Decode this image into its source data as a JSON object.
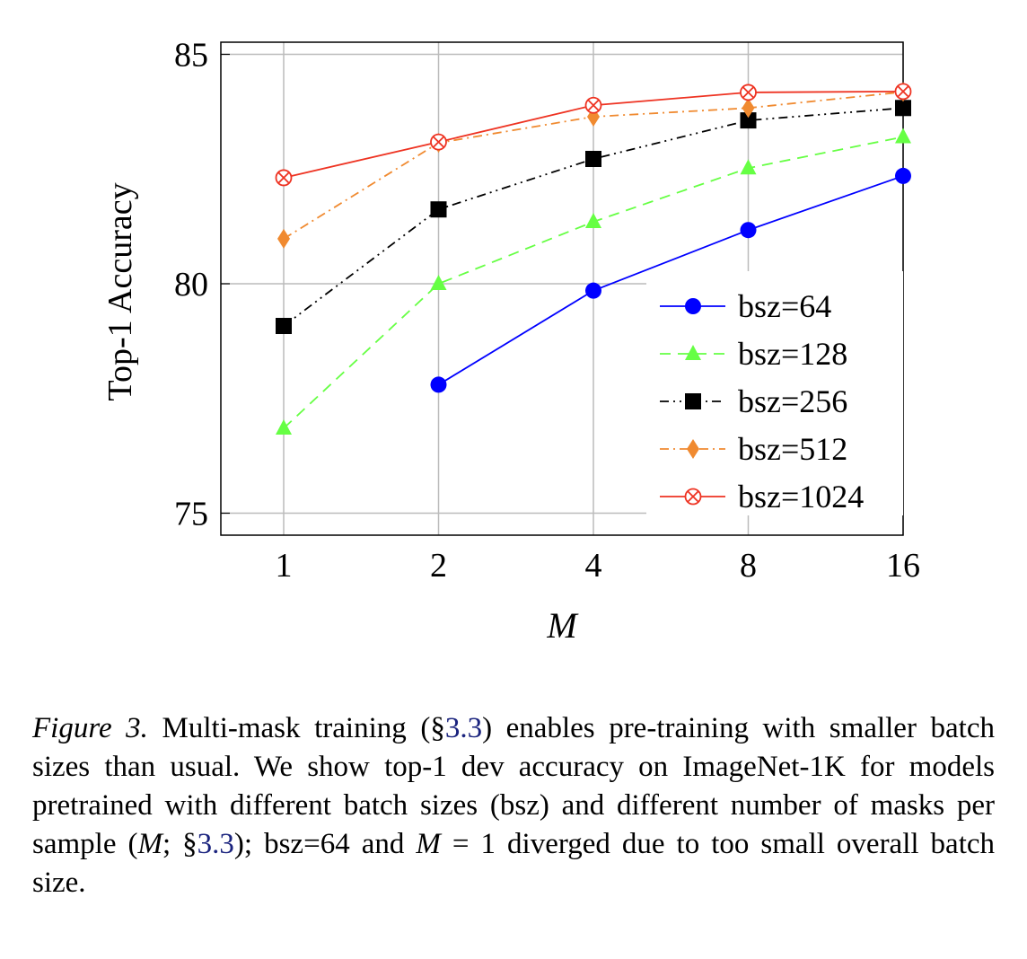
{
  "chart_data": {
    "type": "line",
    "xlabel": "M",
    "ylabel": "Top-1 Accuracy",
    "x": [
      1,
      2,
      4,
      8,
      16
    ],
    "x_tick_labels": [
      "1",
      "2",
      "4",
      "8",
      "16"
    ],
    "x_scale": "log2",
    "ylim": [
      74.5,
      85.2
    ],
    "y_ticks": [
      75,
      80,
      85
    ],
    "grid": true,
    "legend_position": "bottom-right",
    "series": [
      {
        "name": "bsz=64",
        "color": "#0000ff",
        "marker": "circle",
        "dash": "solid",
        "values": [
          null,
          77.8,
          79.85,
          81.17,
          82.35
        ]
      },
      {
        "name": "bsz=128",
        "color": "#66ff44",
        "marker": "triangle",
        "dash": "dashed",
        "values": [
          76.85,
          80.0,
          81.35,
          82.52,
          83.2
        ]
      },
      {
        "name": "bsz=256",
        "color": "#000000",
        "marker": "square",
        "dash": "dash-dot-dot",
        "values": [
          79.08,
          81.62,
          82.72,
          83.56,
          83.83
        ]
      },
      {
        "name": "bsz=512",
        "color": "#f08a30",
        "marker": "diamond",
        "dash": "dash-dot",
        "values": [
          80.98,
          83.07,
          83.64,
          83.83,
          84.18
        ]
      },
      {
        "name": "bsz=1024",
        "color": "#ee3322",
        "marker": "otimes",
        "dash": "solid",
        "values": [
          82.31,
          83.09,
          83.89,
          84.17,
          84.19
        ]
      }
    ]
  },
  "caption": {
    "label": "Figure 3.",
    "t1": " Multi-mask training (§",
    "ref1": "3.3",
    "t2": ") enables pre-training with smaller batch sizes than usual. We show top-1 dev accuracy on ImageNet-1K for models pretrained with different batch sizes (bsz) and different number of masks per sample (",
    "m1": "M",
    "t3": "; §",
    "ref2": "3.3",
    "t4": "); bsz=64 and ",
    "m2": "M",
    "t5": " = 1 diverged due to too small overall batch size."
  }
}
